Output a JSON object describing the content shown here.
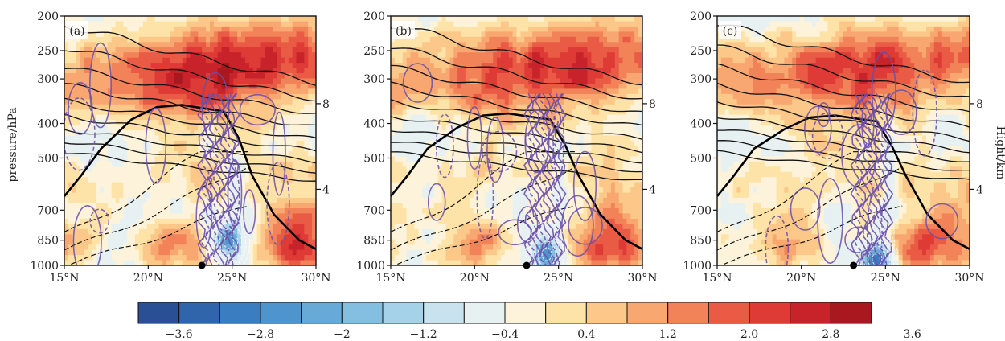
{
  "chart_data": [
    {
      "type": "heatmap",
      "panel_label": "(a)",
      "x_ticks": [
        "15°N",
        "20°N",
        "25°N",
        "30°N"
      ],
      "x_range": [
        15,
        30
      ],
      "y_ticks": [
        "200",
        "250",
        "300",
        "400",
        "500",
        "700",
        "850",
        "1000"
      ],
      "y_range": [
        1000,
        200
      ],
      "right_ticks": [
        "8",
        "4"
      ],
      "ylabel": "pressure/hPa",
      "warm_core": {
        "lat": 24.5,
        "p": 280,
        "value": 3.6
      },
      "cold_core": {
        "lat": 24.8,
        "p": 860,
        "value": -2.8
      },
      "zero_contour_top_hPa": 360,
      "surface_marker_lat": 23.2
    },
    {
      "type": "heatmap",
      "panel_label": "(b)",
      "x_ticks": [
        "15°N",
        "20°N",
        "25°N",
        "30°N"
      ],
      "x_range": [
        15,
        30
      ],
      "y_ticks": [
        "200",
        "250",
        "300",
        "400",
        "500",
        "700",
        "850",
        "1000"
      ],
      "y_range": [
        1000,
        200
      ],
      "right_ticks": [
        "8",
        "4"
      ],
      "warm_core": {
        "lat": 24.8,
        "p": 280,
        "value": 3.2
      },
      "cold_core": {
        "lat": 24.3,
        "p": 930,
        "value": -3.2
      },
      "zero_contour_top_hPa": 380,
      "surface_marker_lat": 23.1
    },
    {
      "type": "heatmap",
      "panel_label": "(c)",
      "x_ticks": [
        "15°N",
        "20°N",
        "25°N",
        "30°N"
      ],
      "x_range": [
        15,
        30
      ],
      "y_ticks": [
        "200",
        "250",
        "300",
        "400",
        "500",
        "700",
        "850",
        "1000"
      ],
      "y_range": [
        1000,
        200
      ],
      "right_ticks": [
        "8",
        "4"
      ],
      "ylabel_right": "Hight/km",
      "warm_core": {
        "lat": 23.8,
        "p": 260,
        "value": 3.0
      },
      "cold_core": {
        "lat": 24.5,
        "p": 960,
        "value": -3.6
      },
      "zero_contour_top_hPa": 385,
      "surface_marker_lat": 23.1
    }
  ],
  "colorbar": {
    "labels": [
      "−3.6",
      "−2.8",
      "−2",
      "−1.2",
      "−0.4",
      "0.4",
      "1.2",
      "2.0",
      "2.8",
      "3.6"
    ],
    "colors": [
      "#2b4f95",
      "#3064ab",
      "#3b7dc1",
      "#4f95cd",
      "#67aad8",
      "#84bfe2",
      "#a6d2e9",
      "#c8e3ee",
      "#e7f1f2",
      "#fdf3da",
      "#fde3a7",
      "#fcc889",
      "#f9a770",
      "#f28359",
      "#ea5b45",
      "#de3a36",
      "#c8232a",
      "#a9181e"
    ]
  }
}
